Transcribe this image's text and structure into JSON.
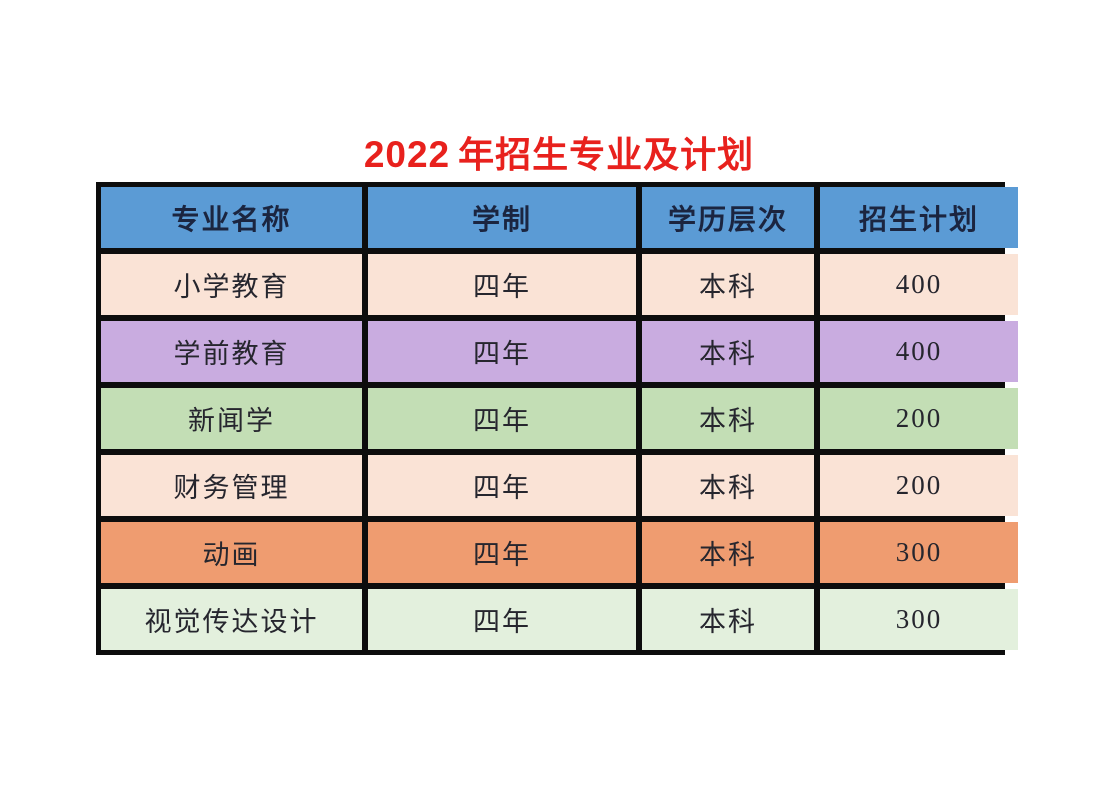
{
  "title": {
    "year": "2022",
    "text": "年招生专业及计划",
    "color": "#e8211d"
  },
  "table": {
    "border_color": "#0d0d0d",
    "header": {
      "bg": "#5b9bd5",
      "text_color": "#1b2540",
      "columns": [
        "专业名称",
        "学制",
        "学历层次",
        "招生计划"
      ]
    },
    "cell_text_color": "#26262e",
    "rows": [
      {
        "bg": "#fae3d6",
        "cells": [
          "小学教育",
          "四年",
          "本科",
          "400"
        ]
      },
      {
        "bg": "#c9ace0",
        "cells": [
          "学前教育",
          "四年",
          "本科",
          "400"
        ]
      },
      {
        "bg": "#c3deb5",
        "cells": [
          "新闻学",
          "四年",
          "本科",
          "200"
        ]
      },
      {
        "bg": "#fae3d6",
        "cells": [
          "财务管理",
          "四年",
          "本科",
          "200"
        ]
      },
      {
        "bg": "#ef9c70",
        "cells": [
          "动画",
          "四年",
          "本科",
          "300"
        ]
      },
      {
        "bg": "#e3f0dd",
        "cells": [
          "视觉传达设计",
          "四年",
          "本科",
          "300"
        ]
      }
    ]
  }
}
